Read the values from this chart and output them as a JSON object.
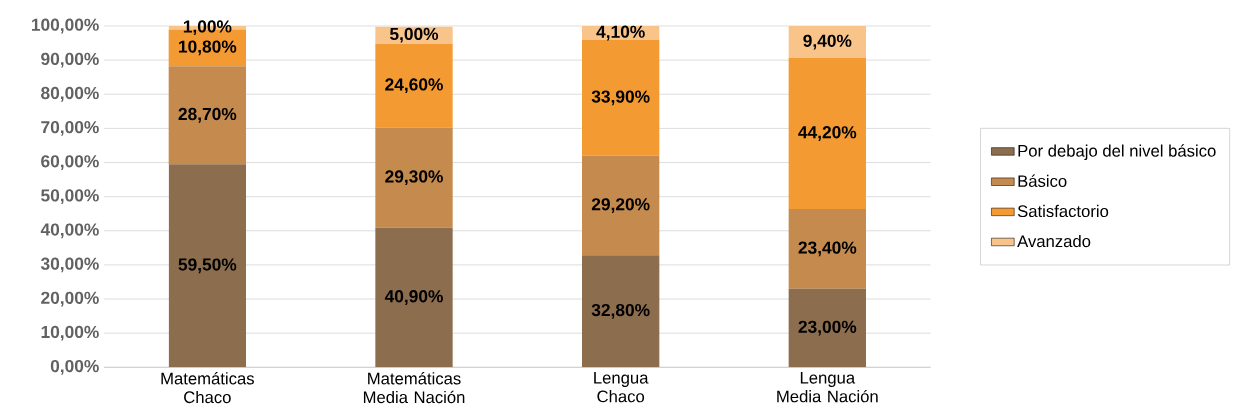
{
  "chart_data": {
    "type": "bar",
    "stacked": true,
    "categories": [
      "Matemáticas Chaco",
      "Matemáticas Media Nación",
      "Lengua Chaco",
      "Lengua Media Nación"
    ],
    "series": [
      {
        "name": "Por debajo del nivel básico",
        "color": "#8c6d4e",
        "values": [
          59.5,
          40.9,
          32.8,
          23.0
        ],
        "value_labels": [
          "59,50%",
          "40,90%",
          "32,80%",
          "23,00%"
        ]
      },
      {
        "name": "Básico",
        "color": "#c48a4e",
        "values": [
          28.7,
          29.3,
          29.2,
          23.4
        ],
        "value_labels": [
          "28,70%",
          "29,30%",
          "29,20%",
          "23,40%"
        ]
      },
      {
        "name": "Satisfactorio",
        "color": "#f39a32",
        "values": [
          10.8,
          24.6,
          33.9,
          44.2
        ],
        "value_labels": [
          "10,80%",
          "24,60%",
          "33,90%",
          "44,20%"
        ]
      },
      {
        "name": "Avanzado",
        "color": "#f9c48a",
        "values": [
          1.0,
          5.0,
          4.1,
          9.4
        ],
        "value_labels": [
          "1,00%",
          "5,00%",
          "4,10%",
          "9,40%"
        ]
      }
    ],
    "ylim": [
      0,
      100
    ],
    "yticks": [
      {
        "value": 0,
        "label": "0,00%"
      },
      {
        "value": 10,
        "label": "10,00%"
      },
      {
        "value": 20,
        "label": "20,00%"
      },
      {
        "value": 30,
        "label": "30,00%"
      },
      {
        "value": 40,
        "label": "40,00%"
      },
      {
        "value": 50,
        "label": "50,00%"
      },
      {
        "value": 60,
        "label": "60,00%"
      },
      {
        "value": 70,
        "label": "70,00%"
      },
      {
        "value": 80,
        "label": "80,00%"
      },
      {
        "value": 90,
        "label": "90,00%"
      },
      {
        "value": 100,
        "label": "100,00%"
      }
    ],
    "grid": "y",
    "legend": "right"
  }
}
